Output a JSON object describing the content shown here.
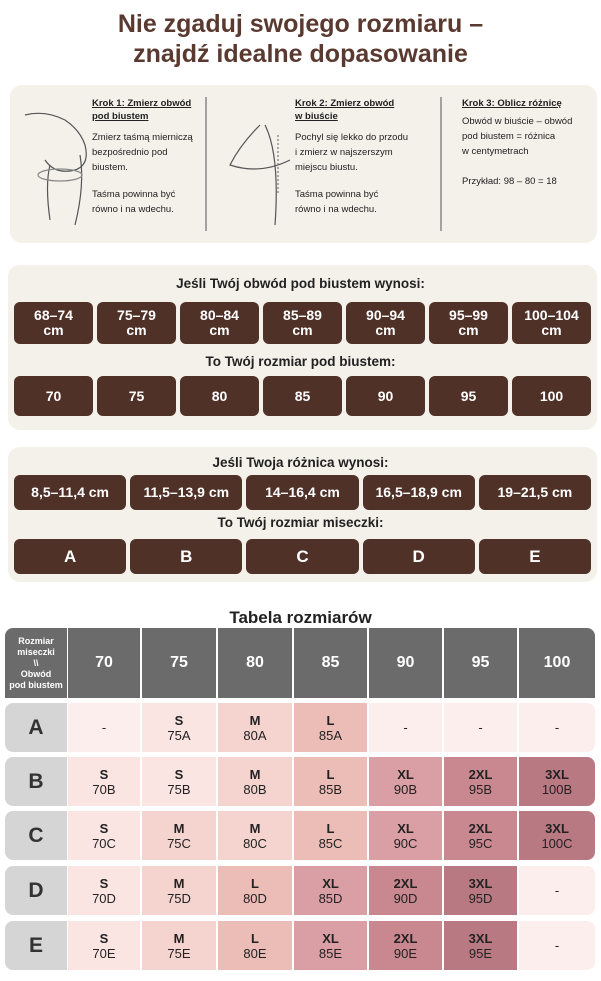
{
  "header": {
    "title_lines": [
      "Nie zgaduj swojego rozmiaru –",
      "znajdź idealne dopasowanie"
    ]
  },
  "steps": [
    {
      "title_lines": [
        "Krok 1: Zmierz obwód",
        "pod biustem"
      ],
      "paragraphs": [
        [
          "Zmierz taśmą mierniczą",
          "bezpośrednio pod",
          "biustem."
        ],
        [
          "Taśma powinna być",
          "równo i na wdechu."
        ]
      ]
    },
    {
      "title_lines": [
        "Krok 2: Zmierz obwód",
        "w biuście"
      ],
      "paragraphs": [
        [
          "Pochyl się lekko do przodu",
          "i zmierz w najszerszym",
          "miejscu biustu."
        ],
        [
          "Taśma powinna być",
          "równo i na wdechu."
        ]
      ]
    },
    {
      "title_lines": [
        "Krok 3: Oblicz różnicę"
      ],
      "paragraphs": [
        [
          "Obwód w biuście – obwód",
          "pod biustem = różnica",
          "w centymetrach"
        ],
        [
          "Przykład: 98 – 80 = 18"
        ]
      ]
    }
  ],
  "band": {
    "question": "Jeśli Twój obwód pod biustem wynosi:",
    "ranges": [
      [
        "68–74",
        "cm"
      ],
      [
        "75–79",
        "cm"
      ],
      [
        "80–84",
        "cm"
      ],
      [
        "85–89",
        "cm"
      ],
      [
        "90–94",
        "cm"
      ],
      [
        "95–99",
        "cm"
      ],
      [
        "100–104",
        "cm"
      ]
    ],
    "answer": "To Twój rozmiar pod biustem:",
    "sizes": [
      "70",
      "75",
      "80",
      "85",
      "90",
      "95",
      "100"
    ]
  },
  "cup": {
    "question": "Jeśli Twoja różnica wynosi:",
    "ranges": [
      "8,5–11,4 cm",
      "11,5–13,9 cm",
      "14–16,4 cm",
      "16,5–18,9 cm",
      "19–21,5 cm"
    ],
    "answer": "To Twój rozmiar miseczki:",
    "sizes": [
      "A",
      "B",
      "C",
      "D",
      "E"
    ]
  },
  "table": {
    "title": "Tabela rozmiarów",
    "corner_lines": [
      "Rozmiar",
      "miseczki",
      "\\\\",
      "Obwód",
      "pod biustem"
    ],
    "columns": [
      "70",
      "75",
      "80",
      "85",
      "90",
      "95",
      "100"
    ],
    "rows": [
      {
        "cup": "A",
        "cells": [
          {
            "size": "-"
          },
          {
            "size": "S",
            "code": "75A"
          },
          {
            "size": "M",
            "code": "80A"
          },
          {
            "size": "L",
            "code": "85A"
          },
          {
            "size": "-"
          },
          {
            "size": "-"
          },
          {
            "size": "-"
          }
        ]
      },
      {
        "cup": "B",
        "cells": [
          {
            "size": "S",
            "code": "70B"
          },
          {
            "size": "S",
            "code": "75B"
          },
          {
            "size": "M",
            "code": "80B"
          },
          {
            "size": "L",
            "code": "85B"
          },
          {
            "size": "XL",
            "code": "90B"
          },
          {
            "size": "2XL",
            "code": "95B"
          },
          {
            "size": "3XL",
            "code": "100B"
          }
        ]
      },
      {
        "cup": "C",
        "cells": [
          {
            "size": "S",
            "code": "70C"
          },
          {
            "size": "M",
            "code": "75C"
          },
          {
            "size": "M",
            "code": "80C"
          },
          {
            "size": "L",
            "code": "85C"
          },
          {
            "size": "XL",
            "code": "90C"
          },
          {
            "size": "2XL",
            "code": "95C"
          },
          {
            "size": "3XL",
            "code": "100C"
          }
        ]
      },
      {
        "cup": "D",
        "cells": [
          {
            "size": "S",
            "code": "70D"
          },
          {
            "size": "M",
            "code": "75D"
          },
          {
            "size": "L",
            "code": "80D"
          },
          {
            "size": "XL",
            "code": "85D"
          },
          {
            "size": "2XL",
            "code": "90D"
          },
          {
            "size": "3XL",
            "code": "95D"
          },
          {
            "size": "-"
          }
        ]
      },
      {
        "cup": "E",
        "cells": [
          {
            "size": "S",
            "code": "70E"
          },
          {
            "size": "M",
            "code": "75E"
          },
          {
            "size": "L",
            "code": "80E"
          },
          {
            "size": "XL",
            "code": "85E"
          },
          {
            "size": "2XL",
            "code": "90E"
          },
          {
            "size": "3XL",
            "code": "95E"
          },
          {
            "size": "-"
          }
        ]
      }
    ],
    "size_colors": {
      "-": "#fbeeed",
      "S": "#fbe5e2",
      "M": "#f5d4d0",
      "L": "#ecbdb7",
      "XL": "#d99fa5",
      "2XL": "#c98890",
      "3XL": "#b97983"
    }
  }
}
